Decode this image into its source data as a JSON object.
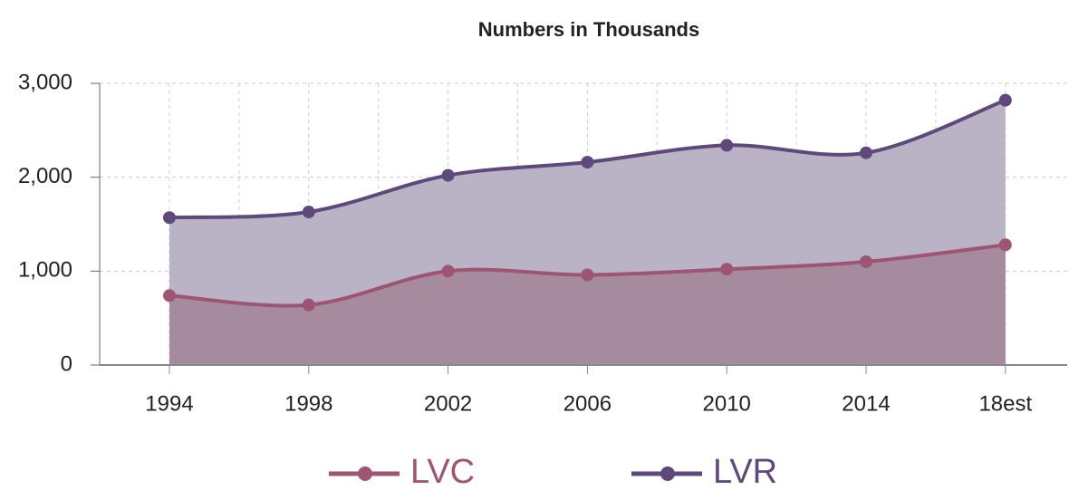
{
  "chart_data": {
    "type": "area",
    "title": "Numbers in Thousands",
    "categories": [
      "1994",
      "1998",
      "2002",
      "2006",
      "2010",
      "2014",
      "18est"
    ],
    "series": [
      {
        "name": "LVC",
        "color": "#9e5573",
        "fill": "#a68b9f",
        "values": [
          740,
          640,
          1000,
          960,
          1020,
          1100,
          1280
        ]
      },
      {
        "name": "LVR",
        "color": "#5e4a7a",
        "fill": "#bab3c6",
        "values": [
          1570,
          1630,
          2020,
          2160,
          2340,
          2260,
          2820
        ]
      }
    ],
    "ylim": [
      0,
      3000
    ],
    "yticks": [
      0,
      {
        "value": 1000,
        "label": "1,000"
      },
      {
        "value": 2000,
        "label": "2,000"
      },
      {
        "value": 3000,
        "label": "3,000"
      }
    ],
    "grid": true,
    "legend": "bottom"
  }
}
